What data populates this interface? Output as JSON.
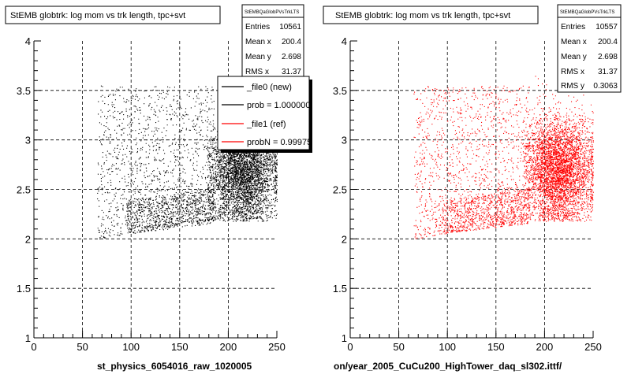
{
  "chart_data": [
    {
      "type": "scatter",
      "title": "StEMB globtrk: log mom vs trk length, tpc+svt",
      "xlabel": "st_physics_6054016_raw_1020005",
      "xlim": [
        0,
        250
      ],
      "ylim": [
        1,
        4
      ],
      "xticks": [
        "0",
        "50",
        "100",
        "150",
        "200",
        "250"
      ],
      "yticks": [
        "1",
        "1.5",
        "2",
        "2.5",
        "3",
        "3.5",
        "4"
      ],
      "grid": true,
      "point_color": "#000000",
      "stats": {
        "name": "StEMBQaGlobPVsTrkLTS",
        "rows": [
          {
            "label": "Entries",
            "value": "10561"
          },
          {
            "label": "Mean x",
            "value": "200.4"
          },
          {
            "label": "Mean y",
            "value": "2.698"
          },
          {
            "label": "RMS x",
            "value": "31.37"
          }
        ]
      },
      "legend": {
        "placement": "top-right",
        "entries": [
          {
            "label": "_file0 (new)",
            "color": "#000000"
          },
          {
            "label": "prob = 1.000000",
            "color": "#000000"
          },
          {
            "label": "_file1 (ref)",
            "color": "#ff0000"
          },
          {
            "label": "probN = 0.99975",
            "color": "#ff0000"
          }
        ]
      }
    },
    {
      "type": "scatter",
      "title": "StEMB globtrk: log mom vs trk length, tpc+svt",
      "xlabel": "on/year_2005_CuCu200_HighTower_daq_sl302.ittf/",
      "xlim": [
        0,
        250
      ],
      "ylim": [
        1,
        4
      ],
      "xticks": [
        "0",
        "50",
        "100",
        "150",
        "200",
        "250"
      ],
      "yticks": [
        "1",
        "1.5",
        "2",
        "2.5",
        "3",
        "3.5",
        "4"
      ],
      "grid": true,
      "point_color": "#ff0000",
      "stats": {
        "name": "StEMBQaGlobPVsTrkLTS",
        "rows": [
          {
            "label": "Entries",
            "value": "10557"
          },
          {
            "label": "Mean x",
            "value": "200.4"
          },
          {
            "label": "Mean y",
            "value": "2.698"
          },
          {
            "label": "RMS x",
            "value": "31.37"
          },
          {
            "label": "RMS y",
            "value": "0.3063"
          }
        ]
      }
    }
  ]
}
